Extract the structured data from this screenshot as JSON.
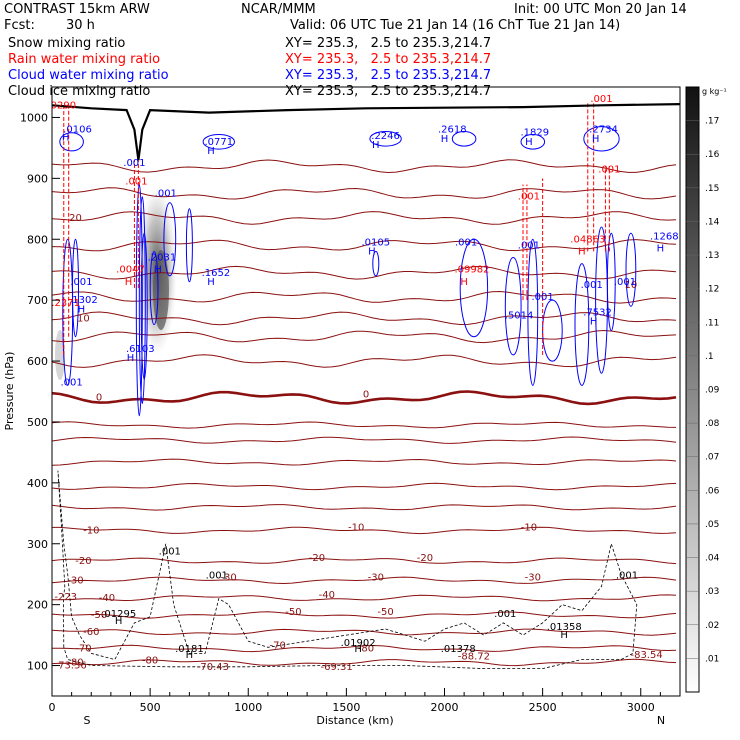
{
  "header": {
    "model": "CONTRAST 15km ARW",
    "org": "NCAR/MMM",
    "init": "Init: 00 UTC Mon 20 Jan 14",
    "fcst_label": "Fcst:",
    "fcst_value": "30 h",
    "valid": "Valid: 06 UTC Tue 21 Jan 14 (16 ChT Tue 21 Jan 14)"
  },
  "fields": [
    {
      "name": "Snow mixing ratio",
      "xy": "XY= 235.3,   2.5 to 235.3,214.7",
      "color": "#000000"
    },
    {
      "name": "Rain water mixing ratio",
      "xy": "XY= 235.3,   2.5 to 235.3,214.7",
      "color": "#ff0000"
    },
    {
      "name": "Cloud water mixing ratio",
      "xy": "XY= 235.3,   2.5 to 235.3,214.7",
      "color": "#0000ff"
    },
    {
      "name": "Cloud ice mixing ratio",
      "xy": "XY= 235.3,   2.5 to 235.3,214.7",
      "color": "#000000"
    }
  ],
  "chart_data": {
    "type": "heatmap",
    "xlabel": "Distance (km)",
    "ylabel": "Pressure (hPa)",
    "xlim": [
      0,
      3200
    ],
    "ylim": [
      1050,
      50
    ],
    "x_ticks": [
      0,
      500,
      1000,
      1500,
      2000,
      2500,
      3000
    ],
    "y_ticks": [
      100,
      200,
      300,
      400,
      500,
      600,
      700,
      800,
      900,
      1000
    ],
    "direction_labels": {
      "left": "S",
      "right": "N"
    },
    "colorbar": {
      "unit": "g kg⁻¹",
      "ticks": [
        ".01",
        ".02",
        ".03",
        ".04",
        ".05",
        ".06",
        ".07",
        ".08",
        ".09",
        ".1",
        ".11",
        ".12",
        ".13",
        ".14",
        ".15",
        ".16",
        ".17"
      ]
    },
    "colors": {
      "temperature": "#8b1010",
      "terrain": "#000000",
      "cloud_water": "#0000ff",
      "rain": "#ff0000",
      "cloud_ice": "#000000"
    },
    "temperature_levels": [
      {
        "p": 105,
        "label": "-80"
      },
      {
        "p": 128,
        "label": "-70"
      },
      {
        "p": 155,
        "label": "-60"
      },
      {
        "p": 183,
        "label": "-50"
      },
      {
        "p": 211,
        "label": "-40"
      },
      {
        "p": 240,
        "label": "-30"
      },
      {
        "p": 272,
        "label": "-20"
      },
      {
        "p": 322,
        "label": "-10"
      },
      {
        "p": 360,
        "label": ""
      },
      {
        "p": 394,
        "label": ""
      },
      {
        "p": 434,
        "label": ""
      },
      {
        "p": 470,
        "label": ""
      },
      {
        "p": 495,
        "label": ""
      },
      {
        "p": 540,
        "label": "0"
      },
      {
        "p": 600,
        "label": ""
      },
      {
        "p": 640,
        "label": ""
      },
      {
        "p": 670,
        "label": "10"
      },
      {
        "p": 705,
        "label": ""
      },
      {
        "p": 745,
        "label": ""
      },
      {
        "p": 790,
        "label": ""
      },
      {
        "p": 835,
        "label": "20"
      },
      {
        "p": 875,
        "label": ""
      },
      {
        "p": 920,
        "label": ""
      }
    ],
    "temp_labels": [
      {
        "x": 95,
        "p": 95,
        "text": "-73.36"
      },
      {
        "x": 820,
        "p": 93,
        "text": "-70.43"
      },
      {
        "x": 1450,
        "p": 93,
        "text": "-69.31"
      },
      {
        "x": 2150,
        "p": 110,
        "text": "-88.72"
      },
      {
        "x": 3030,
        "p": 112,
        "text": "-83.54"
      },
      {
        "x": 70,
        "p": 208,
        "text": "-223"
      },
      {
        "x": 500,
        "p": 103,
        "text": "-80"
      },
      {
        "x": 1150,
        "p": 128,
        "text": "-70"
      },
      {
        "x": 1600,
        "p": 123,
        "text": "-80"
      },
      {
        "x": 1700,
        "p": 183,
        "text": "-50"
      },
      {
        "x": 1230,
        "p": 183,
        "text": "-50"
      },
      {
        "x": 1400,
        "p": 211,
        "text": "-40"
      },
      {
        "x": 900,
        "p": 240,
        "text": "-30"
      },
      {
        "x": 1650,
        "p": 240,
        "text": "-30"
      },
      {
        "x": 2450,
        "p": 240,
        "text": "-30"
      },
      {
        "x": 1350,
        "p": 272,
        "text": "-20"
      },
      {
        "x": 1900,
        "p": 272,
        "text": "-20"
      },
      {
        "x": 1550,
        "p": 322,
        "text": "-10"
      },
      {
        "x": 2430,
        "p": 322,
        "text": "-10"
      },
      {
        "x": 1600,
        "p": 540,
        "text": "0"
      },
      {
        "x": 2950,
        "p": 720,
        "text": "10"
      }
    ],
    "cloud_ice_labels": [
      {
        "x": 700,
        "p": 112,
        "text": "H"
      },
      {
        "x": 700,
        "p": 122,
        "text": ".0181"
      },
      {
        "x": 1560,
        "p": 122,
        "text": "H"
      },
      {
        "x": 1560,
        "p": 132,
        "text": ".01902"
      },
      {
        "x": 2070,
        "p": 122,
        "text": ".01378"
      },
      {
        "x": 2610,
        "p": 145,
        "text": "H"
      },
      {
        "x": 2610,
        "p": 158,
        "text": ".01358"
      },
      {
        "x": 340,
        "p": 168,
        "text": "H"
      },
      {
        "x": 340,
        "p": 180,
        "text": ".01295"
      },
      {
        "x": 2310,
        "p": 180,
        "text": ".001"
      },
      {
        "x": 840,
        "p": 243,
        "text": ".001"
      },
      {
        "x": 600,
        "p": 282,
        "text": ".001"
      },
      {
        "x": 2930,
        "p": 243,
        "text": ".001"
      }
    ],
    "cloud_water_labels": [
      {
        "x": 100,
        "p": 560,
        "text": ".001"
      },
      {
        "x": 400,
        "p": 600,
        "text": "H"
      },
      {
        "x": 450,
        "p": 615,
        "text": ".6103"
      },
      {
        "x": 150,
        "p": 680,
        "text": "H"
      },
      {
        "x": 160,
        "p": 695,
        "text": ".1302"
      },
      {
        "x": 150,
        "p": 725,
        "text": ".001"
      },
      {
        "x": 810,
        "p": 725,
        "text": "H"
      },
      {
        "x": 835,
        "p": 740,
        "text": ".1652"
      },
      {
        "x": 540,
        "p": 745,
        "text": "H"
      },
      {
        "x": 560,
        "p": 765,
        "text": ".2031"
      },
      {
        "x": 580,
        "p": 870,
        "text": ".001"
      },
      {
        "x": 420,
        "p": 920,
        "text": ".001"
      },
      {
        "x": 810,
        "p": 940,
        "text": "H"
      },
      {
        "x": 850,
        "p": 955,
        "text": ".0771"
      },
      {
        "x": 70,
        "p": 962,
        "text": "H"
      },
      {
        "x": 130,
        "p": 975,
        "text": ".0106"
      },
      {
        "x": 1630,
        "p": 775,
        "text": "H"
      },
      {
        "x": 1650,
        "p": 790,
        "text": ".0105"
      },
      {
        "x": 1650,
        "p": 950,
        "text": "H"
      },
      {
        "x": 1700,
        "p": 965,
        "text": ".2246"
      },
      {
        "x": 2000,
        "p": 960,
        "text": "H"
      },
      {
        "x": 2040,
        "p": 975,
        "text": ".2618"
      },
      {
        "x": 2430,
        "p": 955,
        "text": "H"
      },
      {
        "x": 2460,
        "p": 970,
        "text": ".1829"
      },
      {
        "x": 2380,
        "p": 670,
        "text": ".5014"
      },
      {
        "x": 2500,
        "p": 700,
        "text": ".001"
      },
      {
        "x": 2430,
        "p": 785,
        "text": ".001"
      },
      {
        "x": 2110,
        "p": 790,
        "text": ".001"
      },
      {
        "x": 2760,
        "p": 660,
        "text": "H"
      },
      {
        "x": 2780,
        "p": 675,
        "text": ".7532"
      },
      {
        "x": 2750,
        "p": 720,
        "text": ".001"
      },
      {
        "x": 2920,
        "p": 725,
        "text": ".001"
      },
      {
        "x": 2770,
        "p": 960,
        "text": "H"
      },
      {
        "x": 2810,
        "p": 975,
        "text": ".2734"
      },
      {
        "x": 3100,
        "p": 780,
        "text": "H"
      },
      {
        "x": 3120,
        "p": 800,
        "text": ".1268"
      }
    ],
    "rain_labels": [
      {
        "x": 70,
        "p": 690,
        "text": ".2371"
      },
      {
        "x": 390,
        "p": 725,
        "text": "H"
      },
      {
        "x": 400,
        "p": 745,
        "text": ".0047"
      },
      {
        "x": 2100,
        "p": 725,
        "text": "H"
      },
      {
        "x": 2140,
        "p": 745,
        "text": ".09982"
      },
      {
        "x": 2430,
        "p": 865,
        "text": ".001"
      },
      {
        "x": 430,
        "p": 890,
        "text": ".001"
      },
      {
        "x": 2700,
        "p": 775,
        "text": "H"
      },
      {
        "x": 2730,
        "p": 795,
        "text": ".04863"
      },
      {
        "x": 2840,
        "p": 910,
        "text": ".001"
      },
      {
        "x": 2800,
        "p": 1025,
        "text": ".001"
      },
      {
        "x": 50,
        "p": 1015,
        "text": ".0290"
      }
    ]
  }
}
